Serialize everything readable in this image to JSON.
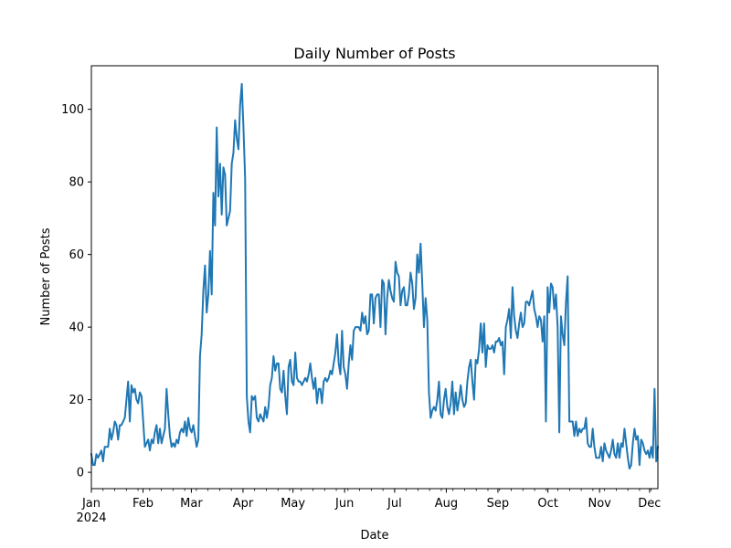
{
  "chart_data": {
    "type": "line",
    "title": "Daily Number of Posts",
    "xlabel": "Date",
    "ylabel": "Number of Posts",
    "x_start": "2024-01-01",
    "x_end": "2024-12-06",
    "ylim": [
      -4.5,
      112
    ],
    "y_ticks": [
      0,
      20,
      40,
      60,
      80,
      100
    ],
    "x_ticks": [
      {
        "date": "2024-01-01",
        "label": "Jan",
        "sublabel": "2024"
      },
      {
        "date": "2024-02-01",
        "label": "Feb"
      },
      {
        "date": "2024-03-01",
        "label": "Mar"
      },
      {
        "date": "2024-04-01",
        "label": "Apr"
      },
      {
        "date": "2024-05-01",
        "label": "May"
      },
      {
        "date": "2024-06-01",
        "label": "Jun"
      },
      {
        "date": "2024-07-01",
        "label": "Jul"
      },
      {
        "date": "2024-08-01",
        "label": "Aug"
      },
      {
        "date": "2024-09-01",
        "label": "Sep"
      },
      {
        "date": "2024-10-01",
        "label": "Oct"
      },
      {
        "date": "2024-11-01",
        "label": "Nov"
      },
      {
        "date": "2024-12-01",
        "label": "Dec"
      }
    ],
    "grid": false,
    "series": [
      {
        "color": "#1f77b4",
        "values": [
          5,
          2,
          2,
          5,
          4,
          5,
          6,
          3,
          7,
          7,
          7,
          12,
          9,
          11,
          14,
          13,
          9,
          13,
          13,
          14,
          15,
          20,
          25,
          14,
          24,
          22,
          23,
          20,
          19,
          22,
          21,
          14,
          7,
          8,
          9,
          6,
          9,
          8,
          11,
          13,
          8,
          12,
          8,
          10,
          12,
          23,
          16,
          10,
          7,
          8,
          7,
          9,
          8,
          11,
          12,
          11,
          14,
          10,
          15,
          12,
          11,
          13,
          10,
          7,
          9,
          32,
          38,
          50,
          57,
          44,
          49,
          61,
          49,
          77,
          68,
          95,
          76,
          85,
          71,
          84,
          82,
          68,
          70,
          72,
          85,
          88,
          97,
          92,
          89,
          101,
          107,
          95,
          81,
          21,
          14,
          11,
          21,
          20,
          21,
          15,
          14,
          16,
          15,
          14,
          18,
          15,
          18,
          24,
          26,
          32,
          28,
          30,
          30,
          23,
          22,
          28,
          21,
          16,
          29,
          31,
          25,
          24,
          33,
          26,
          25,
          25,
          24,
          25,
          26,
          25,
          27,
          30,
          26,
          23,
          26,
          19,
          23,
          23,
          19,
          25,
          26,
          25,
          26,
          28,
          27,
          30,
          33,
          38,
          30,
          27,
          39,
          29,
          27,
          23,
          30,
          35,
          31,
          39,
          40,
          40,
          40,
          39,
          44,
          41,
          43,
          38,
          39,
          49,
          49,
          41,
          48,
          49,
          49,
          40,
          53,
          52,
          38,
          48,
          53,
          50,
          48,
          47,
          58,
          55,
          54,
          46,
          50,
          51,
          46,
          46,
          49,
          55,
          52,
          45,
          48,
          60,
          55,
          63,
          52,
          40,
          48,
          42,
          22,
          15,
          17,
          18,
          17,
          20,
          25,
          16,
          15,
          20,
          23,
          18,
          16,
          19,
          25,
          16,
          22,
          17,
          20,
          24,
          20,
          18,
          19,
          25,
          29,
          31,
          25,
          20,
          31,
          30,
          34,
          41,
          33,
          41,
          29,
          35,
          34,
          34,
          35,
          33,
          36,
          36,
          37,
          35,
          36,
          27,
          40,
          42,
          45,
          37,
          51,
          43,
          39,
          37,
          41,
          44,
          40,
          41,
          47,
          47,
          46,
          48,
          50,
          45,
          43,
          40,
          43,
          42,
          36,
          43,
          14,
          51,
          44,
          52,
          51,
          45,
          49,
          40,
          11,
          43,
          38,
          35,
          47,
          54,
          14,
          14,
          14,
          10,
          14,
          10,
          12,
          11,
          12,
          12,
          15,
          8,
          7,
          7,
          12,
          7,
          4,
          4,
          4,
          7,
          3,
          8,
          6,
          5,
          4,
          6,
          9,
          5,
          4,
          8,
          4,
          8,
          7,
          12,
          8,
          4,
          1,
          2,
          8,
          12,
          9,
          10,
          2,
          9,
          8,
          6,
          5,
          6,
          4,
          7,
          4,
          23,
          3,
          7
        ]
      }
    ]
  }
}
